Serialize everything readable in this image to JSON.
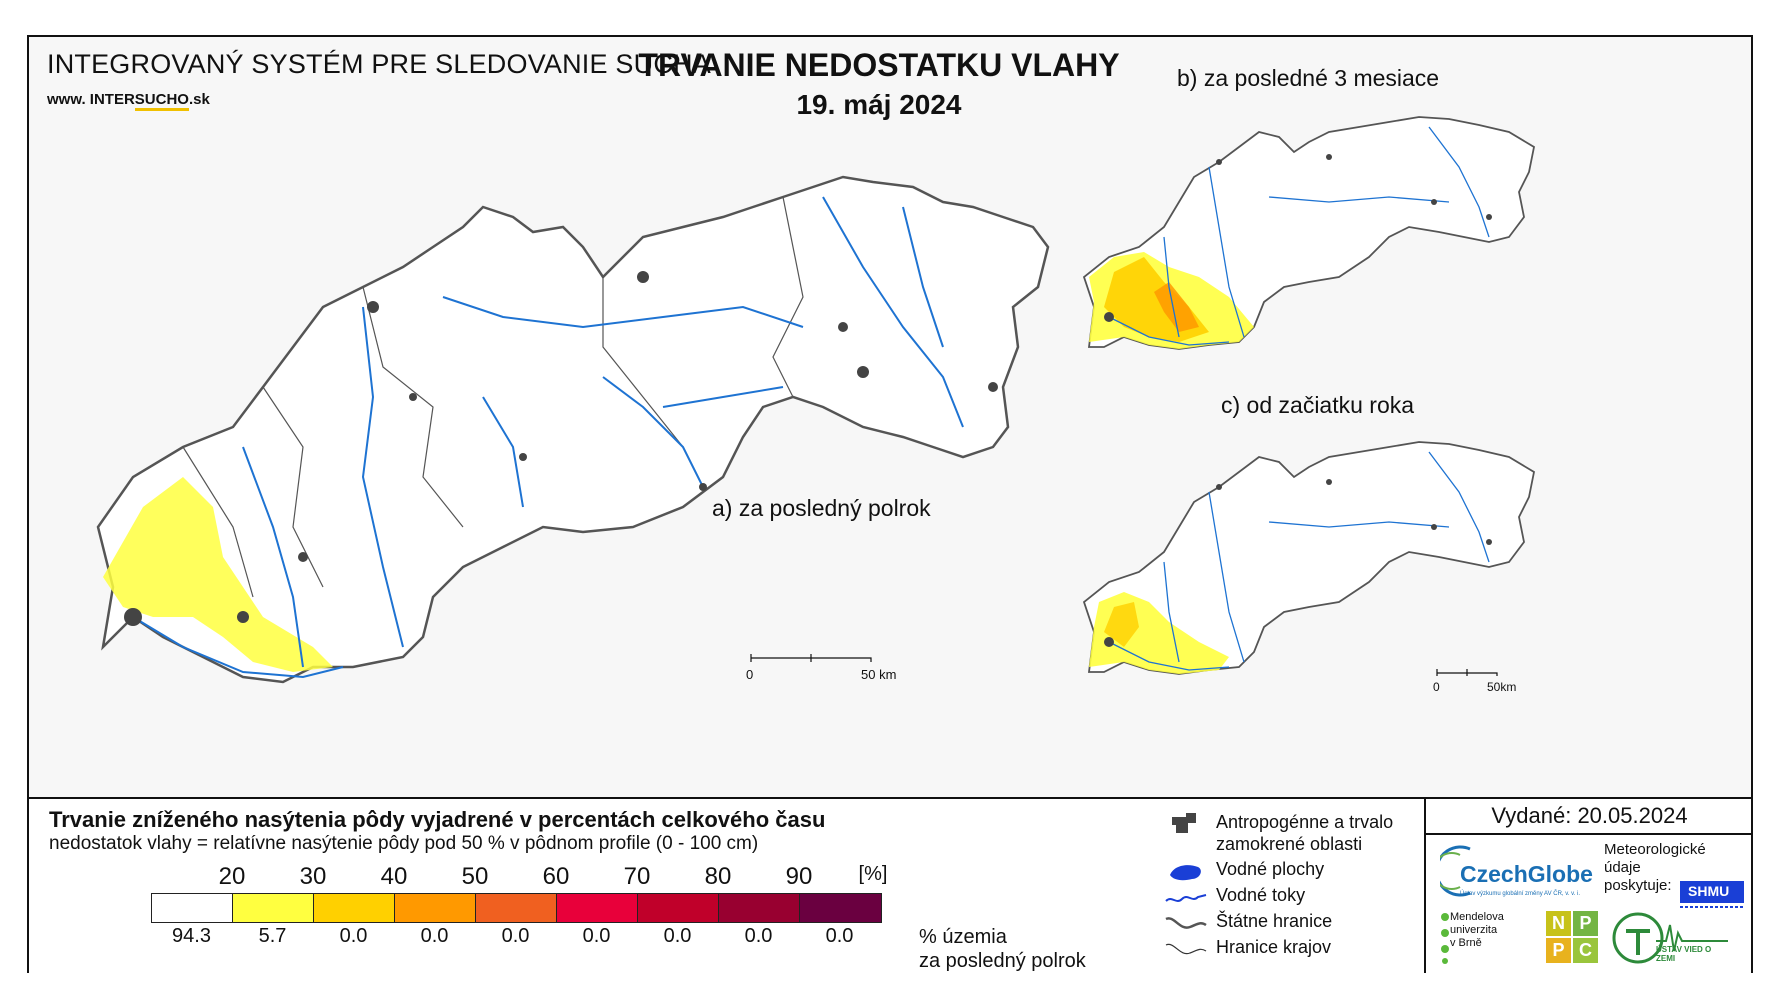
{
  "header": {
    "system_title": "INTEGROVANÝ SYSTÉM PRE SLEDOVANIE SUCHA",
    "site_prefix": "www. INTER",
    "site_underlined": "SUCHO",
    "site_suffix": ".sk",
    "title": "TRVANIE NEDOSTATKU VLAHY",
    "date": "19. máj 2024"
  },
  "panels": {
    "a": "a) za posledný polrok",
    "b": "b) za posledné 3 mesiace",
    "c": "c) od začiatku roka"
  },
  "scalebars": {
    "main": {
      "start": "0",
      "end": "50 km"
    },
    "small": {
      "start": "0",
      "end": "50km"
    }
  },
  "legend": {
    "title": "Trvanie zníženého nasýtenia pôdy vyjadrené v percentách celkového času",
    "subtitle": "nedostatok vlahy = relatívne nasýtenie pôdy pod 50 % v pôdnom profile (0 - 100 cm)",
    "ticks": [
      "20",
      "30",
      "40",
      "50",
      "60",
      "70",
      "80",
      "90",
      "[%]"
    ],
    "class_colors": [
      "#ffffff",
      "#ffff40",
      "#ffd000",
      "#ff9900",
      "#f06020",
      "#e8003a",
      "#c0002a",
      "#980030",
      "#6a0040"
    ],
    "percentages": [
      "94.3",
      "5.7",
      "0.0",
      "0.0",
      "0.0",
      "0.0",
      "0.0",
      "0.0",
      "0.0"
    ],
    "pct_label_1": "% územia",
    "pct_label_2": "za posledný polrok"
  },
  "symbols": {
    "anthropogenic_1": "Antropogénne a trvalo",
    "anthropogenic_2": "zamokrené oblasti",
    "water_areas": "Vodné plochy",
    "water_streams": "Vodné toky",
    "state_border": "Štátne hranice",
    "region_border": "Hranice krajov"
  },
  "issued": "Vydané: 20.05.2024",
  "logos": {
    "czechglobe": "CzechGlobe",
    "czechglobe_sub": "Ústav výzkumu globální změny AV ČR, v. v. i.",
    "meteo": [
      "Meteorologické",
      "údaje",
      "poskytuje:"
    ],
    "shmu": "SHMU",
    "mendel": [
      "Mendelova",
      "univerzita",
      "v Brně"
    ],
    "nppc": [
      "N",
      "P",
      "P",
      "C"
    ],
    "uvz": "ÚSTAV VIED O ZEMI"
  },
  "colors": {
    "river": "#1e73d2",
    "urban": "#444444",
    "border": "#555555"
  }
}
